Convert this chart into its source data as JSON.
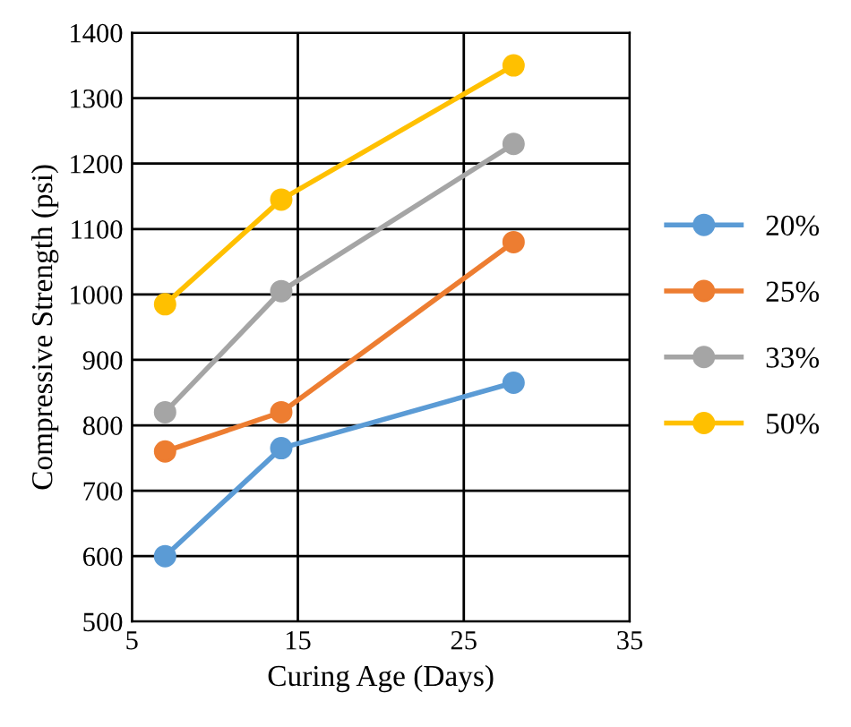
{
  "chart_data": {
    "type": "line",
    "xlabel": "Curing Age (Days)",
    "ylabel": "Compressive Strength (psi)",
    "x": [
      7,
      14,
      28
    ],
    "series": [
      {
        "name": "20%",
        "color": "#5b9bd5",
        "values": [
          600,
          765,
          865
        ]
      },
      {
        "name": "25%",
        "color": "#ed7d31",
        "values": [
          760,
          820,
          1080
        ]
      },
      {
        "name": "33%",
        "color": "#a5a5a5",
        "values": [
          820,
          1005,
          1230
        ]
      },
      {
        "name": "50%",
        "color": "#ffc000",
        "values": [
          985,
          1145,
          1350
        ]
      }
    ],
    "xlim": [
      5,
      35
    ],
    "xticks": [
      5,
      15,
      25,
      35
    ],
    "ylim": [
      500,
      1400
    ],
    "yticks": [
      500,
      600,
      700,
      800,
      900,
      1000,
      1100,
      1200,
      1300,
      1400
    ],
    "grid": true,
    "legend": "right",
    "marker": "circle",
    "line_style": "solid"
  }
}
